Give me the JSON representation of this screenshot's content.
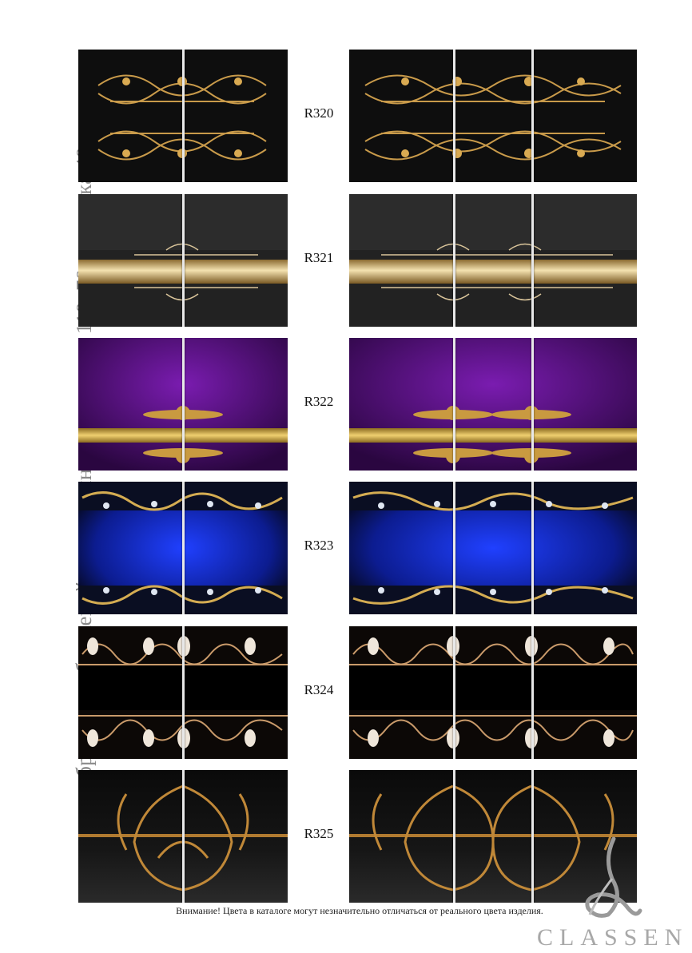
{
  "side_title": "образцы изображений на столешницу размером 110x70 + вставка 40 см",
  "samples": [
    {
      "code": "R320",
      "style": "black-gold-filigree"
    },
    {
      "code": "R321",
      "style": "dark-damask-gold-band"
    },
    {
      "code": "R322",
      "style": "purple-gold-band"
    },
    {
      "code": "R323",
      "style": "blue-jewel-frame"
    },
    {
      "code": "R324",
      "style": "black-pearl-border"
    },
    {
      "code": "R325",
      "style": "black-gold-ornament"
    }
  ],
  "footer_note": "Внимание! Цвета в каталоге могут незначительно отличаться от реального цвета изделия.",
  "brand": "CLASSEN",
  "colors": {
    "gold": "#c89a4a",
    "purple": "#4a0e72",
    "blue": "#1530c8",
    "dark": "#101010"
  }
}
